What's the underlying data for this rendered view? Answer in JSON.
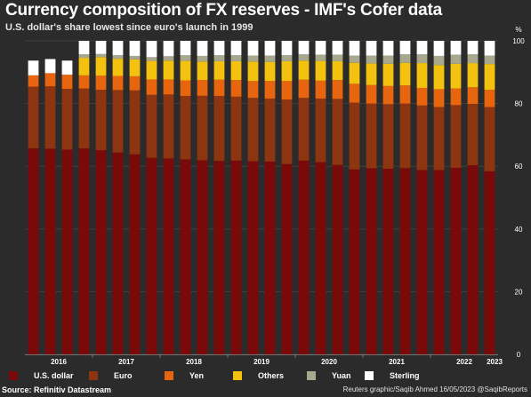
{
  "header": {
    "title": "Currency composition of FX reserves - IMF's Cofer data",
    "subtitle": "U.S. dollar's share lowest since euro's launch in 1999"
  },
  "footer": {
    "source": "Source: Refinitiv Datastream",
    "credit": "Reuters graphic/Saqib Ahmed 16/05/2023 @SaqibReports"
  },
  "chart_data": {
    "type": "bar",
    "stacked": true,
    "unit_label": "%",
    "ylim": [
      0,
      100
    ],
    "yticks": [
      0,
      20,
      40,
      60,
      80,
      100
    ],
    "year_labels": [
      "2016",
      "2017",
      "2018",
      "2019",
      "2020",
      "2021",
      "2022",
      "2023"
    ],
    "categories": [
      "Q1 2016",
      "Q2 2016",
      "Q3 2016",
      "Q4 2016",
      "Q1 2017",
      "Q2 2017",
      "Q3 2017",
      "Q4 2017",
      "Q1 2018",
      "Q2 2018",
      "Q3 2018",
      "Q4 2018",
      "Q1 2019",
      "Q2 2019",
      "Q3 2019",
      "Q4 2019",
      "Q1 2020",
      "Q2 2020",
      "Q3 2020",
      "Q4 2020",
      "Q1 2021",
      "Q2 2021",
      "Q3 2021",
      "Q4 2021",
      "Q1 2022",
      "Q2 2022",
      "Q3 2022",
      "Q4 2022"
    ],
    "series": [
      {
        "name": "U.S. dollar",
        "color": "#7a0a0a",
        "values": [
          65.7,
          65.6,
          65.3,
          65.7,
          65.1,
          64.4,
          63.8,
          62.7,
          62.5,
          62.2,
          61.9,
          61.7,
          61.8,
          61.6,
          61.5,
          60.7,
          61.8,
          61.3,
          60.4,
          59.0,
          59.4,
          59.2,
          59.4,
          58.8,
          58.8,
          59.5,
          60.3,
          58.4
        ]
      },
      {
        "name": "Euro",
        "color": "#8c3510",
        "values": [
          19.7,
          19.9,
          19.4,
          19.1,
          19.3,
          19.9,
          20.4,
          20.1,
          20.4,
          20.2,
          20.6,
          20.7,
          20.4,
          20.2,
          20.1,
          20.6,
          20.0,
          20.3,
          21.1,
          21.3,
          20.6,
          20.6,
          20.6,
          20.6,
          20.1,
          20.0,
          19.6,
          20.5
        ]
      },
      {
        "name": "Yen",
        "color": "#e8650f",
        "values": [
          3.6,
          4.2,
          4.5,
          4.2,
          4.5,
          4.5,
          4.5,
          4.9,
          4.8,
          5.0,
          5.0,
          5.2,
          5.3,
          5.4,
          5.6,
          5.9,
          5.8,
          5.7,
          6.0,
          6.0,
          5.9,
          5.8,
          5.8,
          5.6,
          5.7,
          5.3,
          5.3,
          5.5
        ]
      },
      {
        "name": "Others",
        "color": "#f2c20f",
        "values": [
          0,
          0,
          0,
          5.6,
          5.9,
          5.5,
          5.4,
          5.9,
          6.0,
          6.2,
          5.9,
          5.9,
          6.0,
          6.2,
          6.1,
          6.3,
          6.1,
          6.3,
          6.0,
          6.7,
          6.9,
          7.1,
          7.2,
          7.9,
          7.7,
          7.9,
          7.7,
          8.2
        ]
      },
      {
        "name": "Yuan",
        "color": "#a7a88e",
        "values": [
          0,
          0,
          0,
          1.1,
          1.0,
          1.1,
          1.1,
          1.2,
          1.4,
          1.8,
          1.8,
          1.9,
          1.9,
          1.9,
          2.0,
          1.9,
          2.0,
          2.0,
          2.1,
          2.3,
          2.5,
          2.6,
          2.7,
          2.8,
          2.9,
          2.9,
          2.8,
          2.7
        ]
      },
      {
        "name": "Sterling",
        "color": "#ffffff",
        "values": [
          4.7,
          4.5,
          4.5,
          4.3,
          4.2,
          4.6,
          4.8,
          5.2,
          4.9,
          4.6,
          4.8,
          4.6,
          4.6,
          4.7,
          4.7,
          4.6,
          4.3,
          4.4,
          4.4,
          4.7,
          4.7,
          4.7,
          4.3,
          4.3,
          4.8,
          4.4,
          4.3,
          4.7
        ]
      }
    ]
  }
}
